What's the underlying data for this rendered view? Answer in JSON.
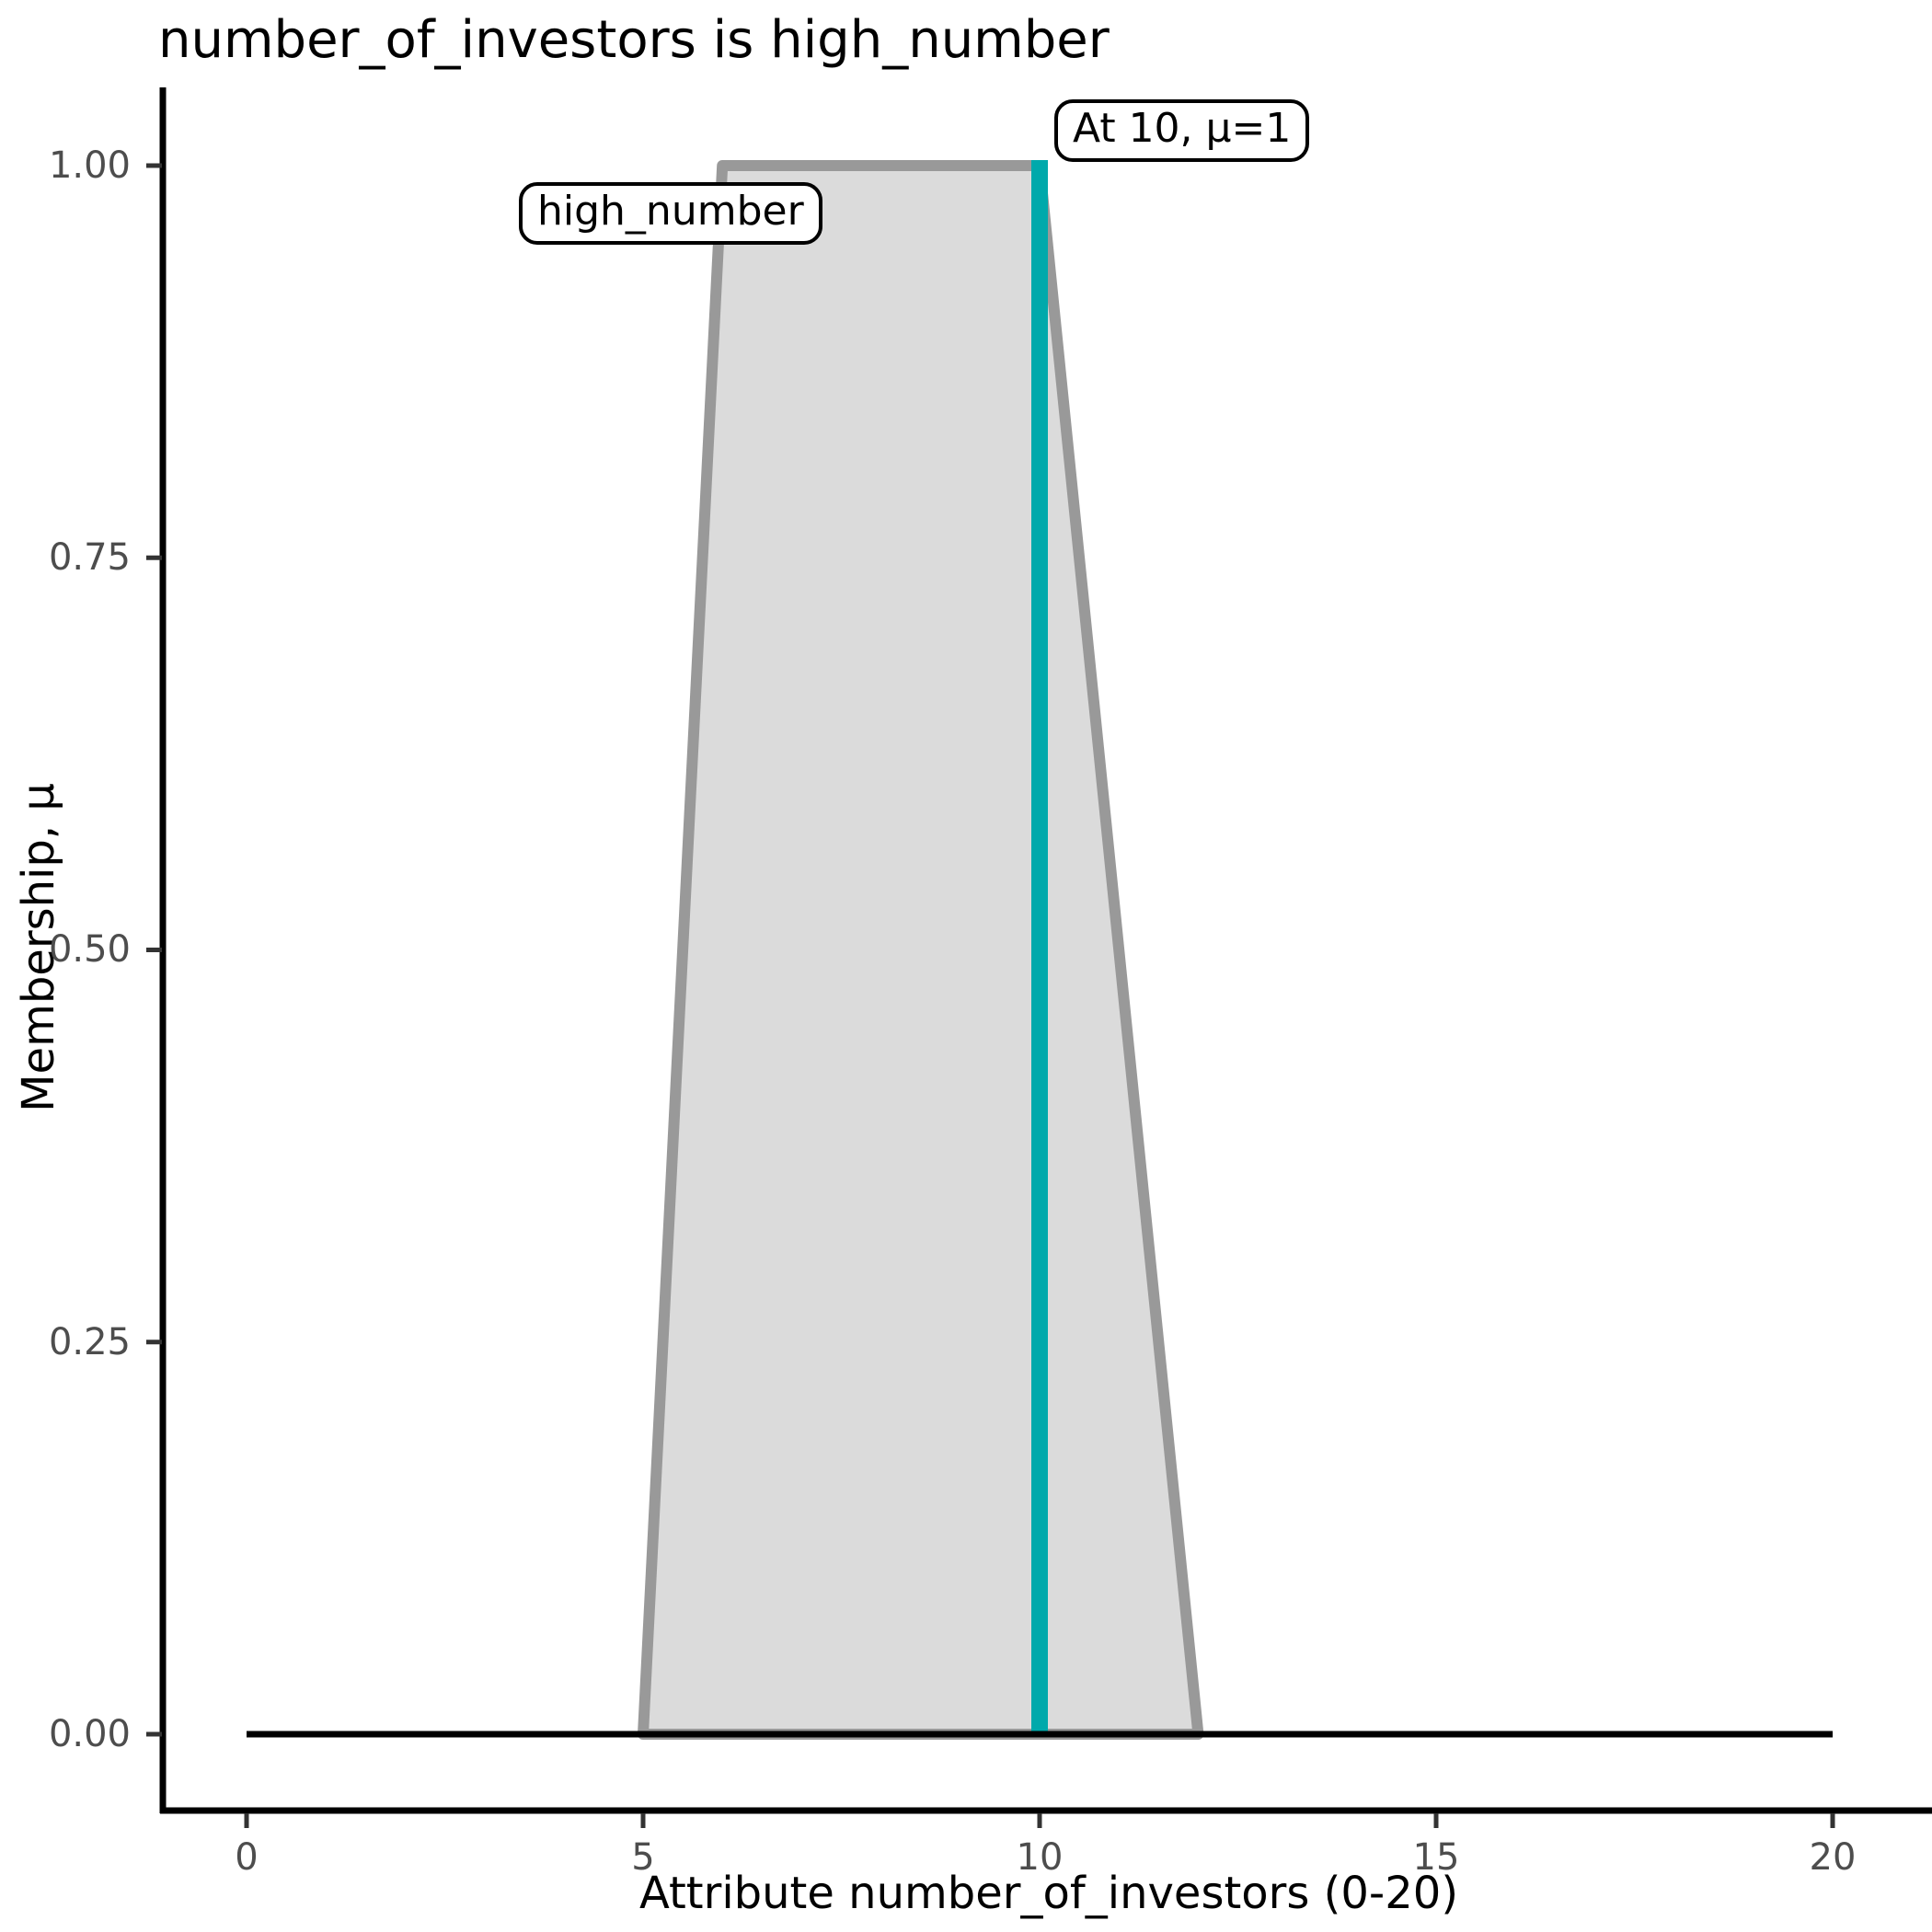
{
  "page": {
    "background": "#FFFFFF"
  },
  "chart_data": {
    "type": "area",
    "title": "number_of_investors is high_number",
    "xlabel": "Attribute number_of_investors (0-20)",
    "ylabel": "Membership, μ",
    "xlim": [
      0,
      20
    ],
    "ylim": [
      0,
      1
    ],
    "grid": false,
    "legend": false,
    "x_ticks": [
      0,
      5,
      10,
      15,
      20
    ],
    "x_tick_labels": [
      "0",
      "5",
      "10",
      "15",
      "20"
    ],
    "y_ticks": [
      0,
      0.25,
      0.5,
      0.75,
      1.0
    ],
    "y_tick_labels": [
      "0.00",
      "0.25",
      "0.50",
      "0.75",
      "1.00"
    ],
    "membership_function": {
      "name": "high_number",
      "shape": "trapezoid",
      "points": [
        [
          5,
          0
        ],
        [
          6,
          1
        ],
        [
          10,
          1
        ],
        [
          12,
          0
        ]
      ],
      "fill": "#DBDBDB",
      "stroke": "#999999"
    },
    "baseline": {
      "from": 0,
      "to": 20,
      "mu": 0,
      "color": "#000000"
    },
    "input_marker": {
      "x": 10,
      "mu": 1,
      "color": "#00A9AB"
    },
    "annotations": [
      {
        "text": "high_number",
        "x": 5.4,
        "y": 0.97
      },
      {
        "text": "At 10, μ=1",
        "x": 10.2,
        "y": 1.04
      }
    ]
  }
}
